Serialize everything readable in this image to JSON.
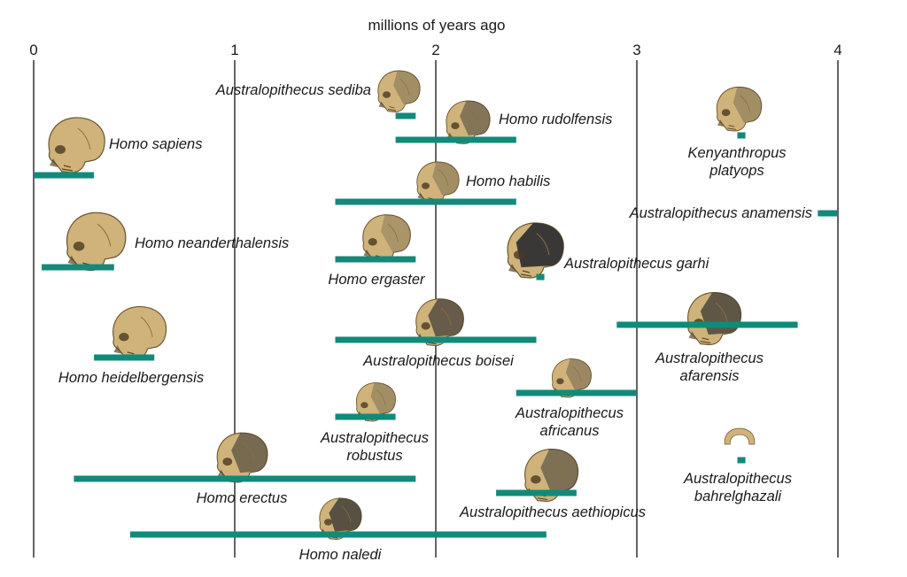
{
  "chart_data": {
    "type": "range-bar",
    "axis_title": "millions of years ago",
    "xlim": [
      0,
      4
    ],
    "ticks": [
      0,
      1,
      2,
      3,
      4
    ],
    "tick_labels": [
      "0",
      "1",
      "2",
      "3",
      "4"
    ],
    "grid": "vertical lines at each whole million years",
    "bar_color": "#128a79",
    "skull_color": "#cfb37a",
    "skull_dark_color": "#3a3836",
    "species": [
      {
        "name": "Homo sapiens",
        "lines": [
          "Homo sapiens"
        ],
        "start": 0.0,
        "end": 0.3
      },
      {
        "name": "Homo neanderthalensis",
        "lines": [
          "Homo neanderthalensis"
        ],
        "start": 0.04,
        "end": 0.4
      },
      {
        "name": "Homo heidelbergensis",
        "lines": [
          "Homo heidelbergensis"
        ],
        "start": 0.3,
        "end": 0.6
      },
      {
        "name": "Homo erectus",
        "lines": [
          "Homo erectus"
        ],
        "start": 0.2,
        "end": 1.9
      },
      {
        "name": "Homo naledi",
        "lines": [
          "Homo naledi"
        ],
        "start": 0.48,
        "end": 2.55
      },
      {
        "name": "Australopithecus sediba",
        "lines": [
          "Australopithecus sediba"
        ],
        "start": 1.8,
        "end": 1.9
      },
      {
        "name": "Homo rudolfensis",
        "lines": [
          "Homo rudolfensis"
        ],
        "start": 1.8,
        "end": 2.4
      },
      {
        "name": "Homo habilis",
        "lines": [
          "Homo habilis"
        ],
        "start": 1.5,
        "end": 2.4
      },
      {
        "name": "Homo ergaster",
        "lines": [
          "Homo ergaster"
        ],
        "start": 1.5,
        "end": 1.9
      },
      {
        "name": "Australopithecus boisei",
        "lines": [
          "Australopithecus boisei"
        ],
        "start": 1.5,
        "end": 2.5
      },
      {
        "name": "Australopithecus robustus",
        "lines": [
          "Australopithecus",
          "robustus"
        ],
        "start": 1.5,
        "end": 1.8
      },
      {
        "name": "Australopithecus garhi",
        "lines": [
          "Australopithecus garhi"
        ],
        "start": 2.5,
        "end": 2.54
      },
      {
        "name": "Australopithecus africanus",
        "lines": [
          "Australopithecus",
          "africanus"
        ],
        "start": 2.4,
        "end": 3.0
      },
      {
        "name": "Australopithecus aethiopicus",
        "lines": [
          "Australopithecus aethiopicus"
        ],
        "start": 2.3,
        "end": 2.7
      },
      {
        "name": "Kenyanthropus platyops",
        "lines": [
          "Kenyanthropus",
          "platyops"
        ],
        "start": 3.5,
        "end": 3.54
      },
      {
        "name": "Australopithecus anamensis",
        "lines": [
          "Australopithecus anamensis"
        ],
        "start": 3.9,
        "end": 4.0
      },
      {
        "name": "Australopithecus afarensis",
        "lines": [
          "Australopithecus",
          "afarensis"
        ],
        "start": 2.9,
        "end": 3.8
      },
      {
        "name": "Australopithecus bahrelghazali",
        "lines": [
          "Australopithecus",
          "bahrelghazali"
        ],
        "start": 3.5,
        "end": 3.54
      }
    ]
  }
}
